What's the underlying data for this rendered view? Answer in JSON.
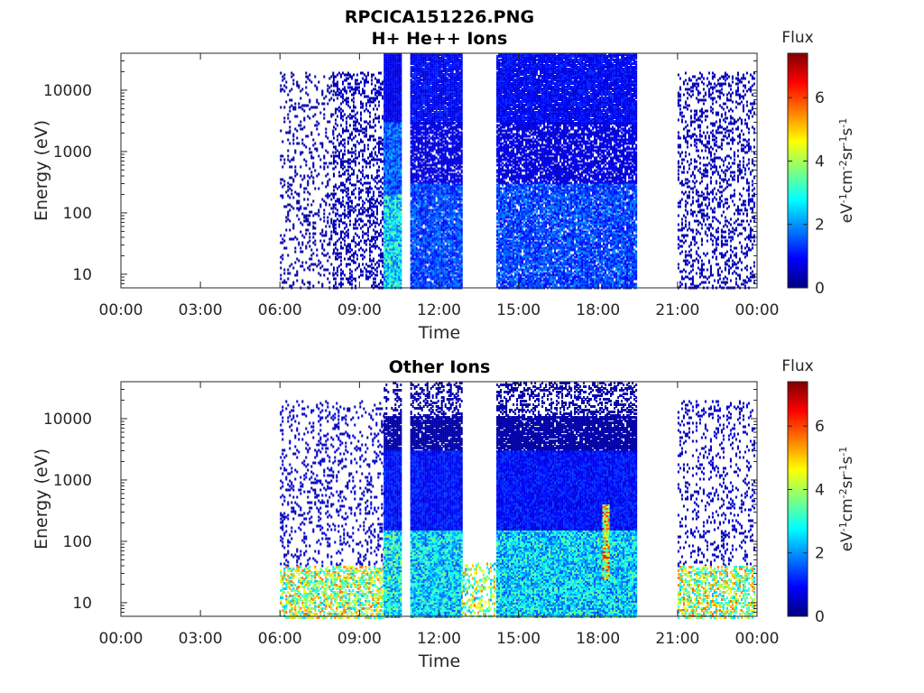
{
  "figure": {
    "title_line1": "RPCICA151226.PNG",
    "title_line2": "H+ He++ Ions"
  },
  "colors": {
    "colormap": [
      "#00007f",
      "#0000ff",
      "#007fff",
      "#00ffff",
      "#7fff7f",
      "#ffff00",
      "#ff7f00",
      "#ff0000",
      "#7f0000"
    ],
    "axis": "#262626",
    "background": "#ffffff"
  },
  "chart_data": [
    {
      "type": "heatmap",
      "title": "H+ He++ Ions",
      "xlabel": "Time",
      "ylabel": "Energy (eV)",
      "x_scale": "time",
      "y_scale": "log",
      "xlim": [
        "00:00",
        "24:00"
      ],
      "ylim": [
        6,
        40000
      ],
      "xticks": [
        "00:00",
        "03:00",
        "06:00",
        "09:00",
        "12:00",
        "15:00",
        "18:00",
        "21:00",
        "00:00"
      ],
      "yticks": [
        "10",
        "100",
        "1000",
        "10000"
      ],
      "grid": false,
      "colorbar": {
        "title": "Flux",
        "unit_label": "eV-1cm-2sr-1s-1",
        "range": [
          0,
          7.4
        ],
        "ticks": [
          "0",
          "2",
          "4",
          "6"
        ]
      },
      "data_gaps": [
        [
          "10:35",
          "10:55"
        ],
        [
          "12:50",
          "14:10"
        ],
        [
          "19:25",
          "21:00"
        ]
      ],
      "regions": [
        {
          "time": [
            "06:00",
            "08:00"
          ],
          "energy": [
            6,
            20000
          ],
          "flux": 0.3,
          "density": 0.15
        },
        {
          "time": [
            "08:00",
            "09:55"
          ],
          "energy": [
            6,
            20000
          ],
          "flux": 0.4,
          "density": 0.3
        },
        {
          "time": [
            "09:55",
            "10:35"
          ],
          "energy": [
            3000,
            40000
          ],
          "flux": 0.8,
          "density": 1.0
        },
        {
          "time": [
            "09:55",
            "10:35"
          ],
          "energy": [
            200,
            3000
          ],
          "flux": 1.6,
          "density": 1.0
        },
        {
          "time": [
            "09:55",
            "10:35"
          ],
          "energy": [
            6,
            200
          ],
          "flux": 2.6,
          "density": 1.0
        },
        {
          "time": [
            "10:55",
            "12:50"
          ],
          "energy": [
            3000,
            40000
          ],
          "flux": 0.9,
          "density": 0.95
        },
        {
          "time": [
            "10:55",
            "12:50"
          ],
          "energy": [
            300,
            3000
          ],
          "flux": 0.7,
          "density": 0.75
        },
        {
          "time": [
            "10:55",
            "12:50"
          ],
          "energy": [
            6,
            300
          ],
          "flux": 1.4,
          "density": 0.9
        },
        {
          "time": [
            "14:10",
            "19:25"
          ],
          "energy": [
            3000,
            40000
          ],
          "flux": 0.9,
          "density": 0.95
        },
        {
          "time": [
            "14:10",
            "19:25"
          ],
          "energy": [
            300,
            3000
          ],
          "flux": 0.7,
          "density": 0.75
        },
        {
          "time": [
            "14:10",
            "19:25"
          ],
          "energy": [
            6,
            300
          ],
          "flux": 1.4,
          "density": 0.85
        },
        {
          "time": [
            "21:00",
            "23:55"
          ],
          "energy": [
            6,
            20000
          ],
          "flux": 0.4,
          "density": 0.25
        }
      ]
    },
    {
      "type": "heatmap",
      "title": "Other Ions",
      "xlabel": "Time",
      "ylabel": "Energy (eV)",
      "x_scale": "time",
      "y_scale": "log",
      "xlim": [
        "00:00",
        "24:00"
      ],
      "ylim": [
        6,
        40000
      ],
      "xticks": [
        "00:00",
        "03:00",
        "06:00",
        "09:00",
        "12:00",
        "15:00",
        "18:00",
        "21:00",
        "00:00"
      ],
      "yticks": [
        "10",
        "100",
        "1000",
        "10000"
      ],
      "grid": false,
      "colorbar": {
        "title": "Flux",
        "unit_label": "eV-1cm-2sr-1s-1",
        "range": [
          0,
          7.4
        ],
        "ticks": [
          "0",
          "2",
          "4",
          "6"
        ]
      },
      "data_gaps": [
        [
          "10:35",
          "10:55"
        ],
        [
          "12:50",
          "14:10"
        ],
        [
          "19:25",
          "21:00"
        ]
      ],
      "regions": [
        {
          "time": [
            "06:00",
            "09:55"
          ],
          "energy": [
            40,
            20000
          ],
          "flux": 0.5,
          "density": 0.15
        },
        {
          "time": [
            "06:00",
            "09:55"
          ],
          "energy": [
            6,
            40
          ],
          "flux": 4.0,
          "density": 0.55
        },
        {
          "time": [
            "09:55",
            "10:35"
          ],
          "energy": [
            11000,
            40000
          ],
          "flux": 0.3,
          "density": 0.25
        },
        {
          "time": [
            "09:55",
            "10:35"
          ],
          "energy": [
            3000,
            11000
          ],
          "flux": 0.3,
          "density": 0.9
        },
        {
          "time": [
            "09:55",
            "10:35"
          ],
          "energy": [
            150,
            3000
          ],
          "flux": 1.0,
          "density": 1.0
        },
        {
          "time": [
            "09:55",
            "10:35"
          ],
          "energy": [
            6,
            150
          ],
          "flux": 2.8,
          "density": 1.0
        },
        {
          "time": [
            "10:55",
            "12:50"
          ],
          "energy": [
            11000,
            40000
          ],
          "flux": 0.3,
          "density": 0.4
        },
        {
          "time": [
            "10:55",
            "12:50"
          ],
          "energy": [
            3000,
            11000
          ],
          "flux": 0.3,
          "density": 0.85
        },
        {
          "time": [
            "10:55",
            "12:50"
          ],
          "energy": [
            150,
            3000
          ],
          "flux": 1.0,
          "density": 1.0
        },
        {
          "time": [
            "10:55",
            "12:50"
          ],
          "energy": [
            6,
            150
          ],
          "flux": 2.5,
          "density": 1.0
        },
        {
          "time": [
            "12:50",
            "14:10"
          ],
          "energy": [
            6,
            45
          ],
          "flux": 3.9,
          "density": 0.35
        },
        {
          "time": [
            "14:10",
            "19:25"
          ],
          "energy": [
            11000,
            40000
          ],
          "flux": 0.3,
          "density": 0.4
        },
        {
          "time": [
            "14:10",
            "19:25"
          ],
          "energy": [
            3000,
            11000
          ],
          "flux": 0.3,
          "density": 0.85
        },
        {
          "time": [
            "14:10",
            "19:25"
          ],
          "energy": [
            150,
            3000
          ],
          "flux": 1.0,
          "density": 1.0
        },
        {
          "time": [
            "14:10",
            "19:25"
          ],
          "energy": [
            6,
            150
          ],
          "flux": 2.5,
          "density": 1.0
        },
        {
          "time": [
            "18:10",
            "18:25"
          ],
          "energy": [
            25,
            400
          ],
          "flux": 4.5,
          "density": 1.0
        },
        {
          "time": [
            "21:00",
            "23:55"
          ],
          "energy": [
            40,
            20000
          ],
          "flux": 0.5,
          "density": 0.15
        },
        {
          "time": [
            "21:00",
            "23:55"
          ],
          "energy": [
            6,
            40
          ],
          "flux": 4.0,
          "density": 0.5
        }
      ]
    }
  ]
}
